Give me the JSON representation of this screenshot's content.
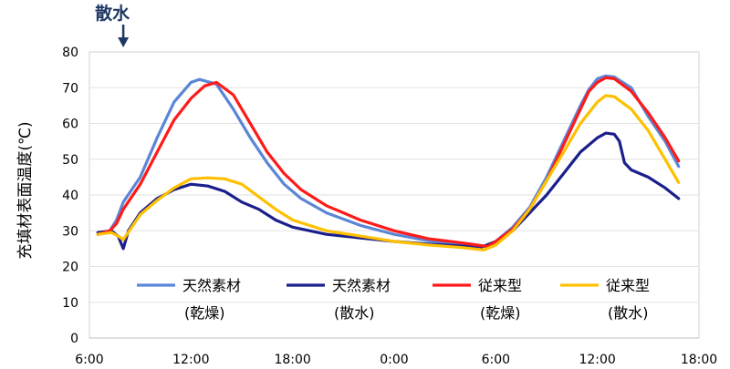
{
  "chart_data": {
    "type": "line",
    "ylabel": "充填材表面温度(℃)",
    "ylim": [
      0,
      80
    ],
    "y_ticks": [
      "0",
      "10",
      "20",
      "30",
      "40",
      "50",
      "60",
      "70",
      "80"
    ],
    "x_ticks": [
      "6:00",
      "12:00",
      "18:00",
      "0:00",
      "6:00",
      "12:00",
      "18:00"
    ],
    "xlim_hours": [
      6,
      42
    ],
    "annotation": {
      "text": "散水",
      "x_hour": 8.0,
      "marker": "arrow-down"
    },
    "legend_position": "bottom-center",
    "series": [
      {
        "name": "天然素材",
        "name_sub": "(乾燥)",
        "color": "#5b86d6",
        "points": [
          [
            6.5,
            29
          ],
          [
            7.2,
            30
          ],
          [
            7.6,
            33
          ],
          [
            8.0,
            38
          ],
          [
            9,
            45
          ],
          [
            10,
            56
          ],
          [
            11,
            66
          ],
          [
            12,
            71.5
          ],
          [
            12.5,
            72.3
          ],
          [
            13.5,
            71
          ],
          [
            14.5,
            64
          ],
          [
            15.5,
            56
          ],
          [
            16.5,
            49
          ],
          [
            17.5,
            43
          ],
          [
            18.5,
            39
          ],
          [
            20,
            35
          ],
          [
            22,
            31.5
          ],
          [
            24,
            29
          ],
          [
            26,
            27.2
          ],
          [
            28,
            26.2
          ],
          [
            29.5,
            25.6
          ],
          [
            30,
            27
          ],
          [
            31,
            31
          ],
          [
            32,
            36.5
          ],
          [
            33,
            45
          ],
          [
            34,
            55
          ],
          [
            35,
            65
          ],
          [
            35.5,
            69.5
          ],
          [
            36,
            72.5
          ],
          [
            36.5,
            73.3
          ],
          [
            37,
            73
          ],
          [
            38,
            70
          ],
          [
            39,
            62
          ],
          [
            40,
            55
          ],
          [
            40.8,
            48
          ]
        ]
      },
      {
        "name": "天然素材",
        "name_sub": "(散水)",
        "color": "#1a1f8c",
        "points": [
          [
            6.5,
            29.5
          ],
          [
            7.3,
            30
          ],
          [
            7.7,
            28.5
          ],
          [
            8.0,
            25
          ],
          [
            8.3,
            30
          ],
          [
            9,
            35
          ],
          [
            10,
            39
          ],
          [
            11,
            41.5
          ],
          [
            12,
            43
          ],
          [
            13,
            42.5
          ],
          [
            14,
            41
          ],
          [
            15,
            38
          ],
          [
            16,
            36
          ],
          [
            17,
            33
          ],
          [
            18,
            31
          ],
          [
            20,
            29
          ],
          [
            22,
            28
          ],
          [
            24,
            27
          ],
          [
            26,
            26.3
          ],
          [
            28,
            25.7
          ],
          [
            29.2,
            25.5
          ],
          [
            30,
            27
          ],
          [
            31,
            30
          ],
          [
            32,
            35
          ],
          [
            33,
            40
          ],
          [
            34,
            46
          ],
          [
            35,
            52
          ],
          [
            36,
            56
          ],
          [
            36.5,
            57.3
          ],
          [
            37,
            57
          ],
          [
            37.3,
            55
          ],
          [
            37.6,
            49
          ],
          [
            38,
            47
          ],
          [
            39,
            45
          ],
          [
            40,
            42
          ],
          [
            40.8,
            39
          ]
        ]
      },
      {
        "name": "従来型",
        "name_sub": "(乾燥)",
        "color": "#ff1a1a",
        "points": [
          [
            6.5,
            29
          ],
          [
            7.2,
            30
          ],
          [
            7.6,
            32
          ],
          [
            8.0,
            36
          ],
          [
            9,
            43
          ],
          [
            10,
            52
          ],
          [
            11,
            61
          ],
          [
            12,
            67
          ],
          [
            12.8,
            70.5
          ],
          [
            13.5,
            71.5
          ],
          [
            14.5,
            68
          ],
          [
            15.5,
            60
          ],
          [
            16.5,
            52
          ],
          [
            17.5,
            46
          ],
          [
            18.5,
            41.5
          ],
          [
            20,
            37
          ],
          [
            22,
            33
          ],
          [
            24,
            30
          ],
          [
            26,
            27.8
          ],
          [
            28,
            26.6
          ],
          [
            29.5,
            25.6
          ],
          [
            30,
            27
          ],
          [
            31,
            30.5
          ],
          [
            32,
            36
          ],
          [
            33,
            44
          ],
          [
            34,
            54
          ],
          [
            35,
            64
          ],
          [
            35.5,
            69
          ],
          [
            36,
            71.5
          ],
          [
            36.5,
            72.8
          ],
          [
            37,
            72.5
          ],
          [
            38,
            69
          ],
          [
            39,
            63
          ],
          [
            40,
            56
          ],
          [
            40.8,
            49.5
          ]
        ]
      },
      {
        "name": "従来型",
        "name_sub": "(散水)",
        "color": "#ffc000",
        "points": [
          [
            6.5,
            29
          ],
          [
            7.3,
            29.5
          ],
          [
            7.7,
            28.5
          ],
          [
            8.0,
            27.5
          ],
          [
            8.5,
            31
          ],
          [
            9,
            34.5
          ],
          [
            10,
            38.5
          ],
          [
            11,
            42
          ],
          [
            12,
            44.5
          ],
          [
            13,
            44.8
          ],
          [
            14,
            44.5
          ],
          [
            15,
            43
          ],
          [
            16,
            39.5
          ],
          [
            17,
            36
          ],
          [
            18,
            33
          ],
          [
            20,
            30
          ],
          [
            22,
            28.5
          ],
          [
            24,
            27
          ],
          [
            26,
            26
          ],
          [
            28,
            25.3
          ],
          [
            29.3,
            24.6
          ],
          [
            30,
            26
          ],
          [
            31,
            30
          ],
          [
            32,
            36
          ],
          [
            33,
            44
          ],
          [
            34,
            52
          ],
          [
            35,
            60
          ],
          [
            36,
            66
          ],
          [
            36.5,
            67.8
          ],
          [
            37,
            67.5
          ],
          [
            38,
            64
          ],
          [
            39,
            58
          ],
          [
            40,
            50
          ],
          [
            40.8,
            43.5
          ]
        ]
      }
    ]
  }
}
